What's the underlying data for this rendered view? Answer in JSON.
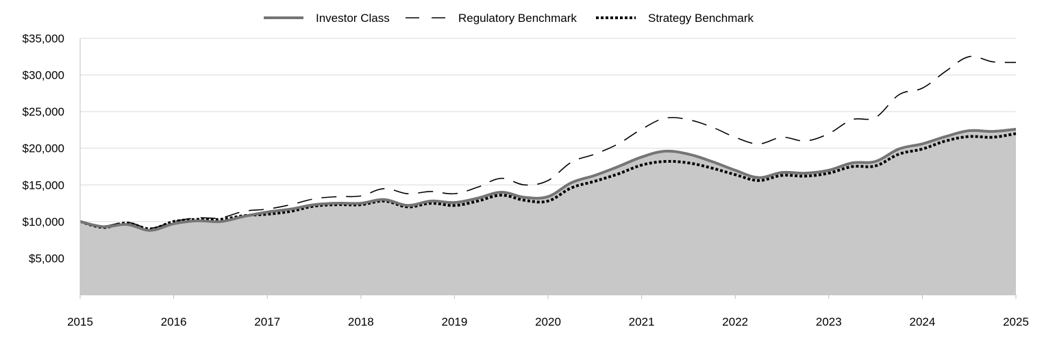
{
  "chart_data": {
    "type": "area",
    "title": "",
    "xlabel": "",
    "ylabel": "",
    "xlim": [
      2015,
      2025
    ],
    "ylim": [
      0,
      35000
    ],
    "grid": true,
    "legend_position": "top-center",
    "x_ticks": [
      2015,
      2016,
      2017,
      2018,
      2019,
      2020,
      2021,
      2022,
      2023,
      2024,
      2025
    ],
    "x_tick_labels": [
      "2015",
      "2016",
      "2017",
      "2018",
      "2019",
      "2020",
      "2021",
      "2022",
      "2023",
      "2024",
      "2025"
    ],
    "y_ticks": [
      5000,
      10000,
      15000,
      20000,
      25000,
      30000,
      35000
    ],
    "y_tick_labels": [
      "$5,000",
      "$10,000",
      "$15,000",
      "$20,000",
      "$25,000",
      "$30,000",
      "$35,000"
    ],
    "series": [
      {
        "name": "Investor Class",
        "style": "solid-area",
        "color": "#757575",
        "fill": "#c8c8c8",
        "x": [
          2015,
          2015.25,
          2015.5,
          2015.75,
          2016,
          2016.25,
          2016.5,
          2016.75,
          2017,
          2017.25,
          2017.5,
          2017.75,
          2018,
          2018.25,
          2018.5,
          2018.75,
          2019,
          2019.25,
          2019.5,
          2019.75,
          2020,
          2020.25,
          2020.5,
          2020.75,
          2021,
          2021.25,
          2021.5,
          2021.75,
          2022,
          2022.25,
          2022.5,
          2022.75,
          2023,
          2023.25,
          2023.5,
          2023.75,
          2024,
          2024.25,
          2024.5,
          2024.75,
          2025
        ],
        "values": [
          10000,
          9300,
          9600,
          8800,
          9700,
          10100,
          10000,
          10700,
          11300,
          11700,
          12300,
          12500,
          12500,
          13000,
          12200,
          12800,
          12600,
          13200,
          14000,
          13300,
          13400,
          15300,
          16300,
          17500,
          18800,
          19600,
          19200,
          18200,
          17000,
          16000,
          16700,
          16600,
          17000,
          18000,
          18200,
          19900,
          20600,
          21600,
          22400,
          22300,
          22600
        ]
      },
      {
        "name": "Regulatory Benchmark",
        "style": "long-dash",
        "color": "#000000",
        "x": [
          2015,
          2015.25,
          2015.5,
          2015.75,
          2016,
          2016.25,
          2016.5,
          2016.75,
          2017,
          2017.25,
          2017.5,
          2017.75,
          2018,
          2018.25,
          2018.5,
          2018.75,
          2019,
          2019.25,
          2019.5,
          2019.75,
          2020,
          2020.25,
          2020.5,
          2020.75,
          2021,
          2021.25,
          2021.5,
          2021.75,
          2022,
          2022.25,
          2022.5,
          2022.75,
          2023,
          2023.25,
          2023.5,
          2023.75,
          2024,
          2024.25,
          2024.5,
          2024.75,
          2025
        ],
        "values": [
          10000,
          9400,
          9900,
          9100,
          10000,
          10500,
          10500,
          11400,
          11700,
          12300,
          13100,
          13400,
          13500,
          14500,
          13800,
          14100,
          13800,
          14700,
          15900,
          15000,
          15600,
          18100,
          19200,
          20600,
          22600,
          24100,
          23900,
          22900,
          21500,
          20600,
          21500,
          21000,
          22000,
          23900,
          24200,
          27300,
          28200,
          30500,
          32500,
          31800,
          31700
        ]
      },
      {
        "name": "Strategy Benchmark",
        "style": "dotted",
        "color": "#000000",
        "x": [
          2015,
          2015.25,
          2015.5,
          2015.75,
          2016,
          2016.25,
          2016.5,
          2016.75,
          2017,
          2017.25,
          2017.5,
          2017.75,
          2018,
          2018.25,
          2018.5,
          2018.75,
          2019,
          2019.25,
          2019.5,
          2019.75,
          2020,
          2020.25,
          2020.5,
          2020.75,
          2021,
          2021.25,
          2021.5,
          2021.75,
          2022,
          2022.25,
          2022.5,
          2022.75,
          2023,
          2023.25,
          2023.5,
          2023.75,
          2024,
          2024.25,
          2024.5,
          2024.75,
          2025
        ],
        "values": [
          10000,
          9200,
          9800,
          9000,
          10000,
          10300,
          10300,
          10800,
          11000,
          11400,
          12100,
          12300,
          12300,
          12800,
          12000,
          12500,
          12200,
          12800,
          13600,
          12900,
          12800,
          14600,
          15500,
          16500,
          17700,
          18200,
          18000,
          17300,
          16400,
          15600,
          16300,
          16200,
          16600,
          17500,
          17600,
          19200,
          19900,
          21000,
          21600,
          21500,
          22000
        ]
      }
    ]
  }
}
